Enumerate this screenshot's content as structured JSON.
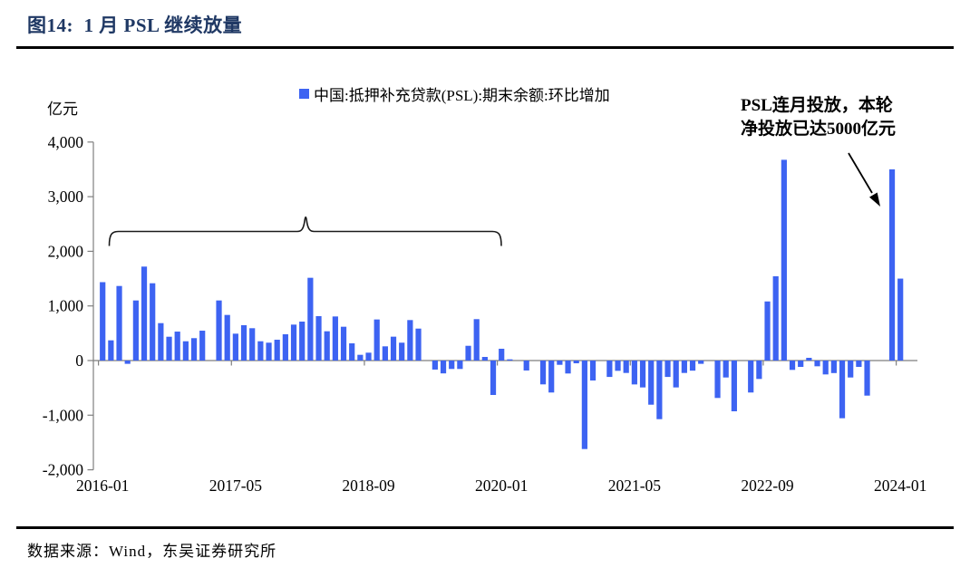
{
  "header": {
    "title": "图14:  1 月 PSL 继续放量"
  },
  "footer": {
    "source": "数据来源：Wind，东吴证券研究所"
  },
  "chart_data": {
    "type": "bar",
    "title": "图14: 1 月 PSL 继续放量",
    "unit_label": "亿元",
    "legend_label": "中国:抵押补充贷款(PSL):期末余额:环比增加",
    "legend_position": "top-center",
    "grid": false,
    "bar_color": "#3D63F2",
    "axis_color": "#7F7F7F",
    "ylim": [
      -2000,
      4000
    ],
    "annotation": {
      "line1": "PSL连月投放，本轮",
      "line2": "净投放已达5000亿元"
    },
    "y_ticks": [
      {
        "v": 4000,
        "label": "4,000"
      },
      {
        "v": 3000,
        "label": "3,000"
      },
      {
        "v": 2000,
        "label": "2,000"
      },
      {
        "v": 1000,
        "label": "1,000"
      },
      {
        "v": 0,
        "label": "0"
      },
      {
        "v": -1000,
        "label": "-1,000"
      },
      {
        "v": -2000,
        "label": "-2,000"
      }
    ],
    "x_ticks": [
      {
        "i": 0,
        "label": "2016-01"
      },
      {
        "i": 16,
        "label": "2017-05"
      },
      {
        "i": 32,
        "label": "2018-09"
      },
      {
        "i": 48,
        "label": "2020-01"
      },
      {
        "i": 64,
        "label": "2021-05"
      },
      {
        "i": 80,
        "label": "2022-09"
      },
      {
        "i": 96,
        "label": "2024-01"
      }
    ],
    "categories": [
      "2016-01",
      "2016-02",
      "2016-03",
      "2016-04",
      "2016-05",
      "2016-06",
      "2016-07",
      "2016-08",
      "2016-09",
      "2016-10",
      "2016-11",
      "2016-12",
      "2017-01",
      "2017-02",
      "2017-03",
      "2017-04",
      "2017-05",
      "2017-06",
      "2017-07",
      "2017-08",
      "2017-09",
      "2017-10",
      "2017-11",
      "2017-12",
      "2018-01",
      "2018-02",
      "2018-03",
      "2018-04",
      "2018-05",
      "2018-06",
      "2018-07",
      "2018-08",
      "2018-09",
      "2018-10",
      "2018-11",
      "2018-12",
      "2019-01",
      "2019-02",
      "2019-03",
      "2019-04",
      "2019-05",
      "2019-06",
      "2019-07",
      "2019-08",
      "2019-09",
      "2019-10",
      "2019-11",
      "2019-12",
      "2020-01",
      "2020-02",
      "2020-03",
      "2020-04",
      "2020-05",
      "2020-06",
      "2020-07",
      "2020-08",
      "2020-09",
      "2020-10",
      "2020-11",
      "2020-12",
      "2021-01",
      "2021-02",
      "2021-03",
      "2021-04",
      "2021-05",
      "2021-06",
      "2021-07",
      "2021-08",
      "2021-09",
      "2021-10",
      "2021-11",
      "2021-12",
      "2022-01",
      "2022-02",
      "2022-03",
      "2022-04",
      "2022-05",
      "2022-06",
      "2022-07",
      "2022-08",
      "2022-09",
      "2022-10",
      "2022-11",
      "2022-12",
      "2023-01",
      "2023-02",
      "2023-03",
      "2023-04",
      "2023-05",
      "2023-06",
      "2023-07",
      "2023-08",
      "2023-09",
      "2023-10",
      "2023-11",
      "2023-12",
      "2024-01"
    ],
    "series": [
      {
        "name": "中国:抵押补充贷款(PSL):期末余额:环比增加",
        "values": [
          1435,
          370,
          1365,
          -60,
          1100,
          1720,
          1415,
          685,
          436,
          530,
          353,
          410,
          547,
          0,
          1100,
          835,
          492,
          647,
          592,
          353,
          327,
          381,
          481,
          658,
          713,
          1515,
          813,
          536,
          807,
          619,
          315,
          105,
          144,
          752,
          260,
          437,
          327,
          741,
          585,
          0,
          -165,
          -235,
          -154,
          -154,
          270,
          758,
          66,
          -630,
          216,
          22,
          0,
          -182,
          0,
          -436,
          -585,
          -78,
          -237,
          -50,
          -1620,
          -365,
          0,
          -300,
          -188,
          -227,
          -437,
          -492,
          -808,
          -1073,
          -300,
          -492,
          -227,
          -185,
          -60,
          0,
          -685,
          -310,
          -929,
          0,
          -585,
          -337,
          1082,
          1543,
          3675,
          -171,
          -116,
          50,
          -105,
          -254,
          -229,
          -1056,
          -310,
          -116,
          -642,
          0,
          0,
          3500,
          1500
        ]
      }
    ]
  }
}
